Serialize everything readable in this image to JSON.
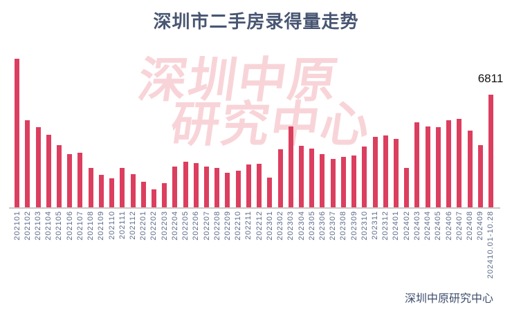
{
  "header": {
    "title": "深圳市二手房录得量走势",
    "title_color": "#485672"
  },
  "watermark": {
    "line1": "深圳中原",
    "line2": "研究中心",
    "color": "#f8d4d8"
  },
  "annotation": {
    "label": "6811"
  },
  "source": {
    "text": "深圳中原研究中心"
  },
  "chart_data": {
    "type": "bar",
    "title": "深圳市二手房录得量走势",
    "xlabel": "",
    "ylabel": "",
    "ylim": [
      0,
      9000
    ],
    "grid": false,
    "legend": "none",
    "bar_color": "#dc3e5f",
    "axis_line_color": "#c8c8c8",
    "tick_label_color": "#5d6b89",
    "categories": [
      "202101",
      "202102",
      "202103",
      "202104",
      "202105",
      "202106",
      "202107",
      "202108",
      "202109",
      "202110",
      "202111",
      "202112",
      "202201",
      "202202",
      "202203",
      "202204",
      "202205",
      "202206",
      "202207",
      "202208",
      "202209",
      "202210",
      "202211",
      "202212",
      "202301",
      "202302",
      "202303",
      "202304",
      "202305",
      "202306",
      "202307",
      "202308",
      "202309",
      "202310",
      "202311",
      "202312",
      "202401",
      "202402",
      "202403",
      "202404",
      "202405",
      "202406",
      "202407",
      "202408",
      "202409",
      "202410.01-10.28"
    ],
    "values": [
      9000,
      5270,
      4860,
      4400,
      3770,
      3210,
      3320,
      2370,
      1960,
      1770,
      2400,
      2020,
      1560,
      1080,
      1470,
      2490,
      2760,
      2670,
      2460,
      2390,
      2110,
      2230,
      2580,
      2630,
      1790,
      3510,
      4900,
      3720,
      3580,
      3210,
      2930,
      3070,
      3160,
      3670,
      4260,
      4340,
      4140,
      2370,
      5140,
      4920,
      4860,
      5280,
      5380,
      4650,
      3770,
      6811
    ],
    "annotated_point": {
      "category": "202410.01-10.28",
      "value": 6811,
      "label": "6811"
    }
  }
}
